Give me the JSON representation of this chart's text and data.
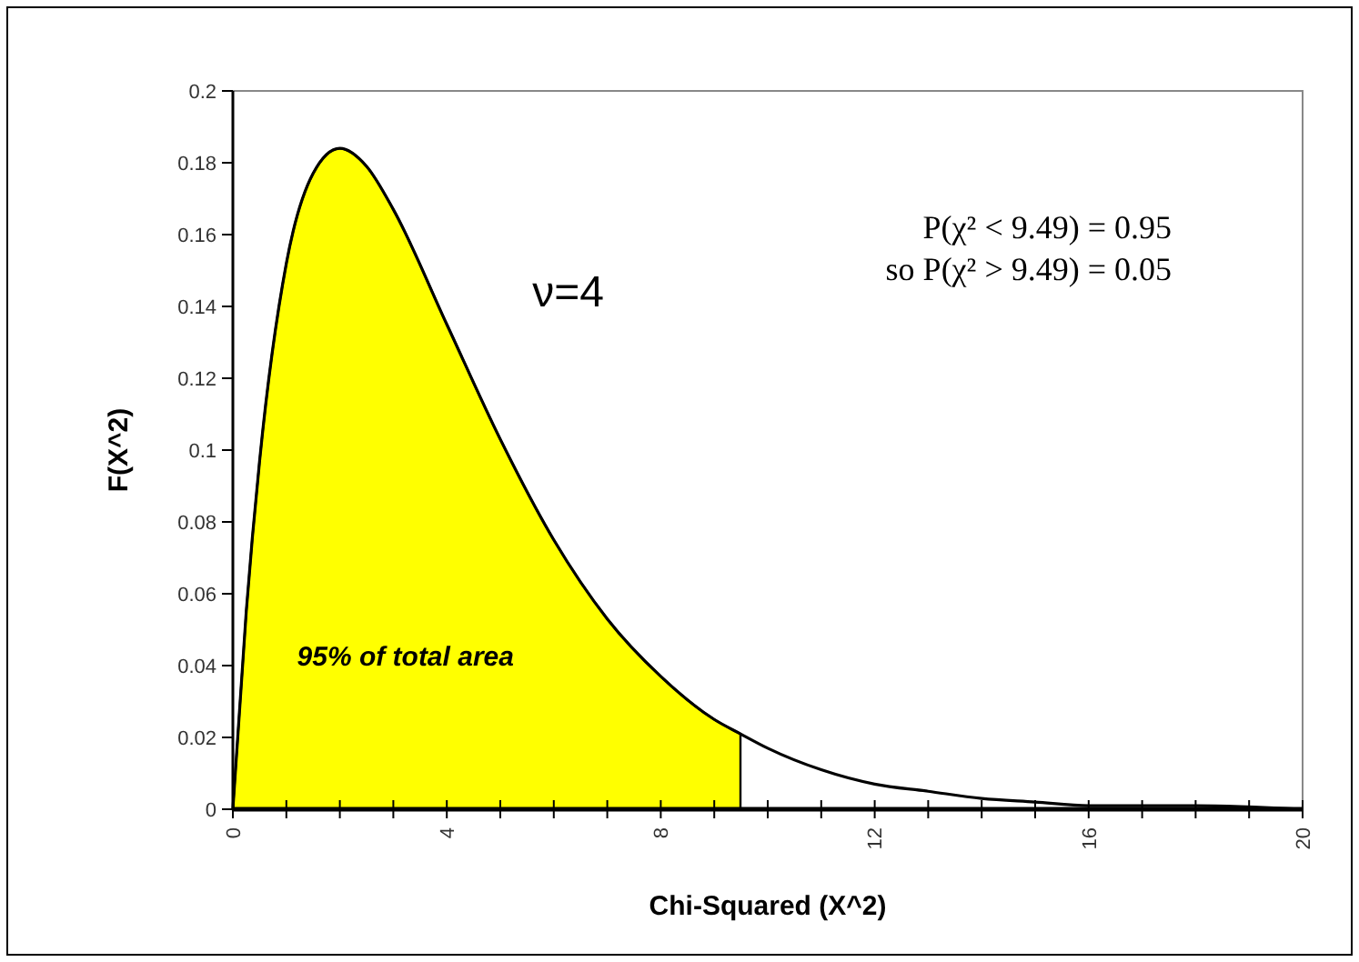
{
  "chart_data": {
    "type": "line",
    "xlabel": "Chi-Squared (X^2)",
    "ylabel": "F(X^2)",
    "xlim": [
      0,
      20
    ],
    "xticks": [
      0,
      {
        "value": 1,
        "label": null
      },
      {
        "value": 2,
        "label": null
      },
      {
        "value": 3,
        "label": null
      },
      4,
      {
        "value": 5,
        "label": null
      },
      {
        "value": 6,
        "label": null
      },
      {
        "value": 7,
        "label": null
      },
      8,
      {
        "value": 9,
        "label": null
      },
      {
        "value": 10,
        "label": null
      },
      {
        "value": 11,
        "label": null
      },
      12,
      {
        "value": 13,
        "label": null
      },
      {
        "value": 14,
        "label": null
      },
      {
        "value": 15,
        "label": null
      },
      16,
      {
        "value": 17,
        "label": null
      },
      {
        "value": 18,
        "label": null
      },
      {
        "value": 19,
        "label": null
      },
      20
    ],
    "ylim": [
      0,
      0.2
    ],
    "yticks": [
      0,
      0.02,
      0.04,
      0.06,
      0.08,
      0.1,
      0.12,
      0.14,
      0.16,
      0.18,
      0.2
    ],
    "series": [
      {
        "type": "area",
        "color": "#ffff00",
        "x": [
          0,
          0.25,
          0.5,
          1,
          1.5,
          2,
          2.5,
          3,
          4,
          5,
          6,
          7,
          8,
          9,
          9.49
        ],
        "values": [
          0,
          0.055,
          0.097,
          0.152,
          0.177,
          0.184,
          0.179,
          0.167,
          0.135,
          0.103,
          0.075,
          0.053,
          0.037,
          0.025,
          0.021
        ]
      },
      {
        "color": "#000000",
        "x": [
          0,
          0.25,
          0.5,
          1,
          1.5,
          2,
          2.5,
          3,
          4,
          5,
          6,
          7,
          8,
          9,
          9.49,
          10,
          11,
          12,
          13,
          14,
          15,
          16,
          18,
          20
        ],
        "values": [
          0,
          0.055,
          0.097,
          0.152,
          0.177,
          0.184,
          0.179,
          0.167,
          0.135,
          0.103,
          0.075,
          0.053,
          0.037,
          0.025,
          0.021,
          0.017,
          0.011,
          0.007,
          0.005,
          0.003,
          0.002,
          0.001,
          0.001,
          0
        ]
      }
    ],
    "annotations": [
      "ν=4",
      "95% of total area",
      "P(χ² < 9.49) = 0.95",
      "so P(χ² > 9.49) = 0.05"
    ]
  }
}
